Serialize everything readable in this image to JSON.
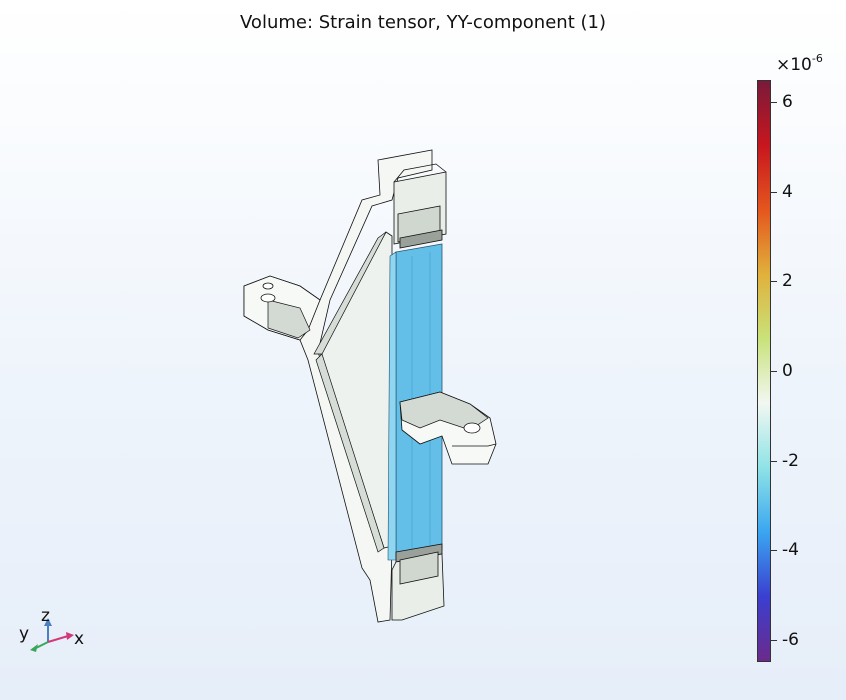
{
  "title": "Volume: Strain tensor, YY-component (1)",
  "colorbar": {
    "exponent_base": "×10",
    "exponent_power": "-6",
    "colors": [
      "#6b2a8c",
      "#3a3fd0",
      "#3aa6f0",
      "#8fe3e6",
      "#f2f7f2",
      "#c9e27a",
      "#e0b13b",
      "#e4561e",
      "#c7161e",
      "#7a1a3a"
    ],
    "ticks": [
      {
        "label": "6",
        "value": 6
      },
      {
        "label": "4",
        "value": 4
      },
      {
        "label": "2",
        "value": 2
      },
      {
        "label": "0",
        "value": 0
      },
      {
        "label": "-2",
        "value": -2
      },
      {
        "label": "-4",
        "value": -4
      },
      {
        "label": "-6",
        "value": -6
      }
    ],
    "range": [
      -6.5,
      6.5
    ]
  },
  "axes": {
    "x": "x",
    "y": "y",
    "z": "z"
  },
  "colors": {
    "strain_fill": "#5cbde6",
    "part_fill": "#f4f6f4",
    "part_shade": "#cfd6cf",
    "edge": "#111111"
  }
}
